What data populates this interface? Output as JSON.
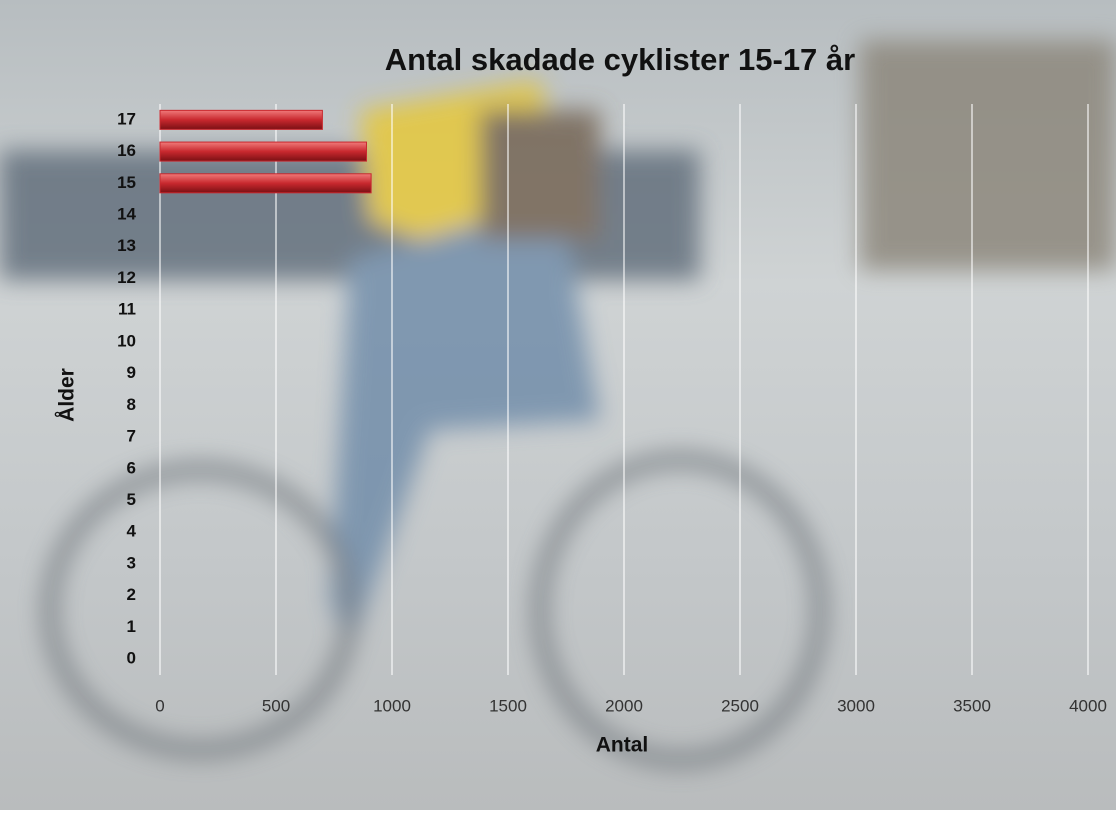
{
  "chart_data": {
    "type": "bar",
    "orientation": "horizontal",
    "title": "Antal skadade cyklister  15-17 år",
    "x_label": "Antal",
    "y_label": "Ålder",
    "categories": [
      "0",
      "1",
      "2",
      "3",
      "4",
      "5",
      "6",
      "7",
      "8",
      "9",
      "10",
      "11",
      "12",
      "13",
      "14",
      "15",
      "16",
      "17"
    ],
    "values": [
      0,
      0,
      0,
      0,
      0,
      0,
      0,
      0,
      0,
      0,
      0,
      0,
      0,
      0,
      0,
      910,
      890,
      700
    ],
    "color": "#c8282e",
    "xlim": [
      0,
      4000
    ],
    "xticks": [
      0,
      500,
      1000,
      1500,
      2000,
      2500,
      3000,
      3500,
      4000
    ],
    "grid": true
  }
}
